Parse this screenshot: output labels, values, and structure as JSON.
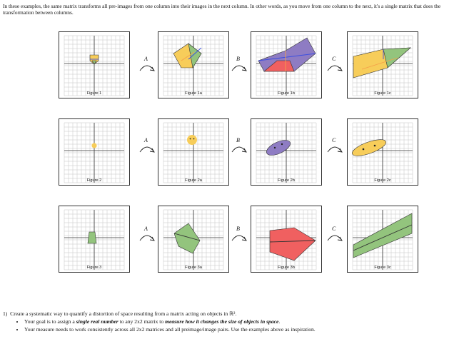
{
  "intro_text": "In these examples, the same matrix transforms all pre-images from one column into their images in the next column.  In other words, as you move from one column to the next, it's a single matrix that does the transformation between columns.",
  "arrow_labels": [
    "A",
    "B",
    "C"
  ],
  "row1": {
    "captions": [
      "Figure 1",
      "Figure 1a",
      "Figure 1b",
      "Figure 1c"
    ]
  },
  "row2": {
    "captions": [
      "Figure 2",
      "Figure 2a",
      "Figure 2b",
      "Figure 2c"
    ]
  },
  "row3": {
    "captions": [
      "Figure 3",
      "Figure 3a",
      "Figure 3b",
      "Figure 3c"
    ]
  },
  "question": {
    "number": "1)",
    "text": "Create a systematic way to quantify a distortion of space resulting from a matrix acting on objects in ℝ².",
    "bullet1_pre": "Your goal is to assign a ",
    "bullet1_em1": "single real number",
    "bullet1_mid": " to any 2x2 matrix to ",
    "bullet1_em2": "measure how it changes the size of objects in space",
    "bullet1_post": ".",
    "bullet2": "Your measure needs to work consistently across all 2x2 matrices and all preimage/image pairs. Use the examples above as inspiration."
  },
  "colors": {
    "yellow": "#f7cd5a",
    "green": "#93c47d",
    "purple": "#8e7cc3",
    "red": "#f06060",
    "blue": "#3c4fe0",
    "orange": "#f5a04a"
  }
}
